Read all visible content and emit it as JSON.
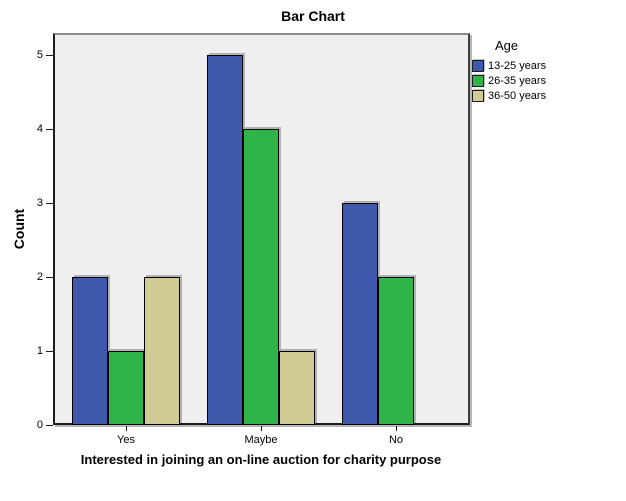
{
  "chart_data": {
    "type": "bar",
    "title": "Bar Chart",
    "categories": [
      "Yes",
      "Maybe",
      "No"
    ],
    "series": [
      {
        "name": "13-25 years",
        "color": "#3E59AB",
        "values": [
          2,
          5,
          3
        ]
      },
      {
        "name": "26-35 years",
        "color": "#2FB44A",
        "values": [
          1,
          4,
          2
        ]
      },
      {
        "name": "36-50 years",
        "color": "#D1CC94",
        "values": [
          2,
          1,
          0
        ]
      }
    ],
    "legend_title": "Age",
    "legend_position": "right",
    "xlabel": "Interested in joining an on-line auction for charity purpose",
    "ylabel": "Count",
    "ylim": [
      0,
      5
    ],
    "yticks": [
      0,
      1,
      2,
      3,
      4,
      5
    ],
    "grid": false,
    "plot_background": "#F0EFEF"
  }
}
